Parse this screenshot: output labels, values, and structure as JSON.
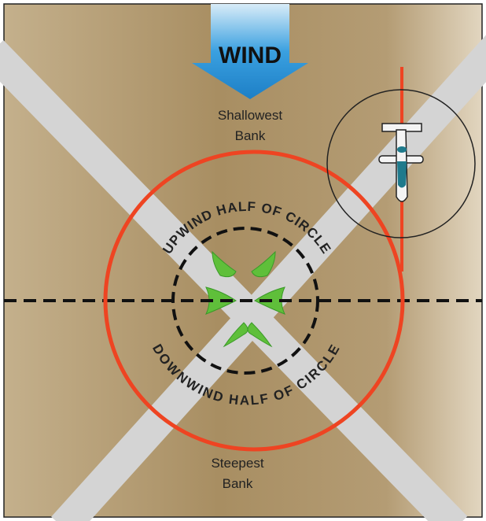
{
  "wind": "WIND",
  "top_label": [
    "Shallowest",
    "Bank"
  ],
  "upwind_label": "UPWIND HALF OF CIRCLE",
  "downwind_label": "DOWNWIND HALF OF CIRCLE",
  "bottom_label": [
    "Steepest",
    "Bank"
  ]
}
